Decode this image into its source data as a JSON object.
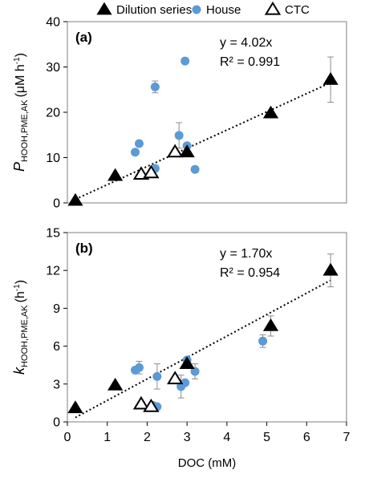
{
  "legend": {
    "position": "top",
    "items": [
      {
        "name": "Dilution series",
        "marker": "filled-triangle",
        "color": "#000000"
      },
      {
        "name": "House",
        "marker": "circle",
        "color": "#5b9bd5"
      },
      {
        "name": "CTC",
        "marker": "open-triangle",
        "color": "#000000"
      }
    ]
  },
  "chart_data": [
    {
      "type": "scatter",
      "panel_label": "(a)",
      "ylabel_main": "P",
      "ylabel_sub": "HOOH,PME,AK",
      "ylabel_unit": "(μM h",
      "ylabel_sup": "-1",
      "ylabel_close": ")",
      "xlim": [
        0,
        7
      ],
      "ylim": [
        0,
        40
      ],
      "yticks": [
        0,
        10,
        20,
        30,
        40
      ],
      "equation": "y = 4.02x",
      "r2": "R² = 0.991",
      "trendline_slope": 4.02,
      "trendline_x": [
        0.2,
        6.6
      ],
      "series": [
        {
          "name": "Dilution series",
          "points": [
            {
              "x": 0.2,
              "y": 0.5
            },
            {
              "x": 1.2,
              "y": 6.0
            },
            {
              "x": 3.0,
              "y": 11.2
            },
            {
              "x": 5.1,
              "y": 19.8
            },
            {
              "x": 6.6,
              "y": 27.2,
              "err": 5.0
            }
          ]
        },
        {
          "name": "House",
          "points": [
            {
              "x": 1.7,
              "y": 11.2
            },
            {
              "x": 1.8,
              "y": 13.1
            },
            {
              "x": 2.2,
              "y": 25.6,
              "err": 1.3
            },
            {
              "x": 2.2,
              "y": 7.6
            },
            {
              "x": 2.8,
              "y": 14.9,
              "err": 2.8
            },
            {
              "x": 2.95,
              "y": 31.3
            },
            {
              "x": 3.0,
              "y": 12.6
            },
            {
              "x": 3.2,
              "y": 7.4
            }
          ]
        },
        {
          "name": "CTC",
          "points": [
            {
              "x": 1.85,
              "y": 6.3
            },
            {
              "x": 2.1,
              "y": 6.6
            },
            {
              "x": 2.7,
              "y": 11.2
            }
          ]
        }
      ]
    },
    {
      "type": "scatter",
      "panel_label": "(b)",
      "ylabel_main": "k",
      "ylabel_sub": "HOOH,PME,AK",
      "ylabel_unit": "(h",
      "ylabel_sup": "-1",
      "ylabel_close": ")",
      "xlabel": "DOC (mM)",
      "xlim": [
        0,
        7
      ],
      "ylim": [
        0,
        15
      ],
      "xticks": [
        0,
        1,
        2,
        3,
        4,
        5,
        6,
        7
      ],
      "yticks": [
        0,
        3,
        6,
        9,
        12,
        15
      ],
      "equation": "y = 1.70x",
      "r2": "R² = 0.954",
      "trendline_slope": 1.7,
      "trendline_x": [
        0.2,
        6.6
      ],
      "series": [
        {
          "name": "Dilution series",
          "points": [
            {
              "x": 0.2,
              "y": 1.1
            },
            {
              "x": 1.2,
              "y": 2.9
            },
            {
              "x": 3.0,
              "y": 4.6
            },
            {
              "x": 5.1,
              "y": 7.6,
              "err": 0.8
            },
            {
              "x": 6.6,
              "y": 12.0,
              "err": 1.3
            }
          ]
        },
        {
          "name": "House",
          "points": [
            {
              "x": 1.7,
              "y": 4.1
            },
            {
              "x": 1.8,
              "y": 4.3,
              "err": 0.5
            },
            {
              "x": 2.15,
              "y": 1.3
            },
            {
              "x": 2.25,
              "y": 1.2
            },
            {
              "x": 2.25,
              "y": 3.6,
              "err": 1.0
            },
            {
              "x": 2.85,
              "y": 2.8,
              "err": 0.9
            },
            {
              "x": 2.95,
              "y": 3.1
            },
            {
              "x": 3.0,
              "y": 4.9
            },
            {
              "x": 3.2,
              "y": 4.0,
              "err": 0.6
            },
            {
              "x": 4.9,
              "y": 6.4,
              "err": 0.5
            }
          ]
        },
        {
          "name": "CTC",
          "points": [
            {
              "x": 1.85,
              "y": 1.4
            },
            {
              "x": 2.1,
              "y": 1.2
            },
            {
              "x": 2.7,
              "y": 3.4
            }
          ]
        }
      ]
    }
  ]
}
